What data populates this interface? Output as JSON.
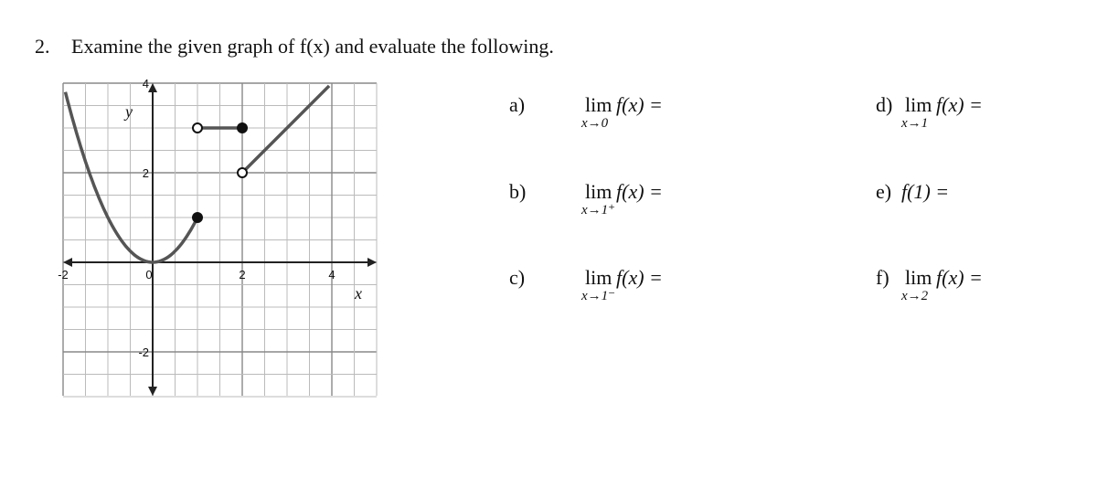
{
  "header": {
    "number": "2.",
    "title": "Examine the given graph of f(x) and evaluate the following."
  },
  "graph": {
    "x_label": "x",
    "y_label": "y",
    "x_ticks": [
      "-2",
      "0",
      "2",
      "4"
    ],
    "y_ticks": [
      "4",
      "2",
      "-2"
    ]
  },
  "items": [
    {
      "label": "a)",
      "lim": "lim",
      "expr": "f(x) =",
      "sub": "x→0"
    },
    {
      "label": "b)",
      "lim": "lim",
      "expr": "f(x) =",
      "sub": "x→1⁺"
    },
    {
      "label": "c)",
      "lim": "lim",
      "expr": "f(x)  =",
      "sub": "x→1⁻"
    },
    {
      "label": "d)",
      "lim": "lim",
      "expr": "f(x) =",
      "sub": "x→1"
    },
    {
      "label": "e)",
      "expr": "f(1)  ="
    },
    {
      "label": "f)",
      "lim": "lim",
      "expr": "f(x) =",
      "sub": "x→2"
    }
  ]
}
